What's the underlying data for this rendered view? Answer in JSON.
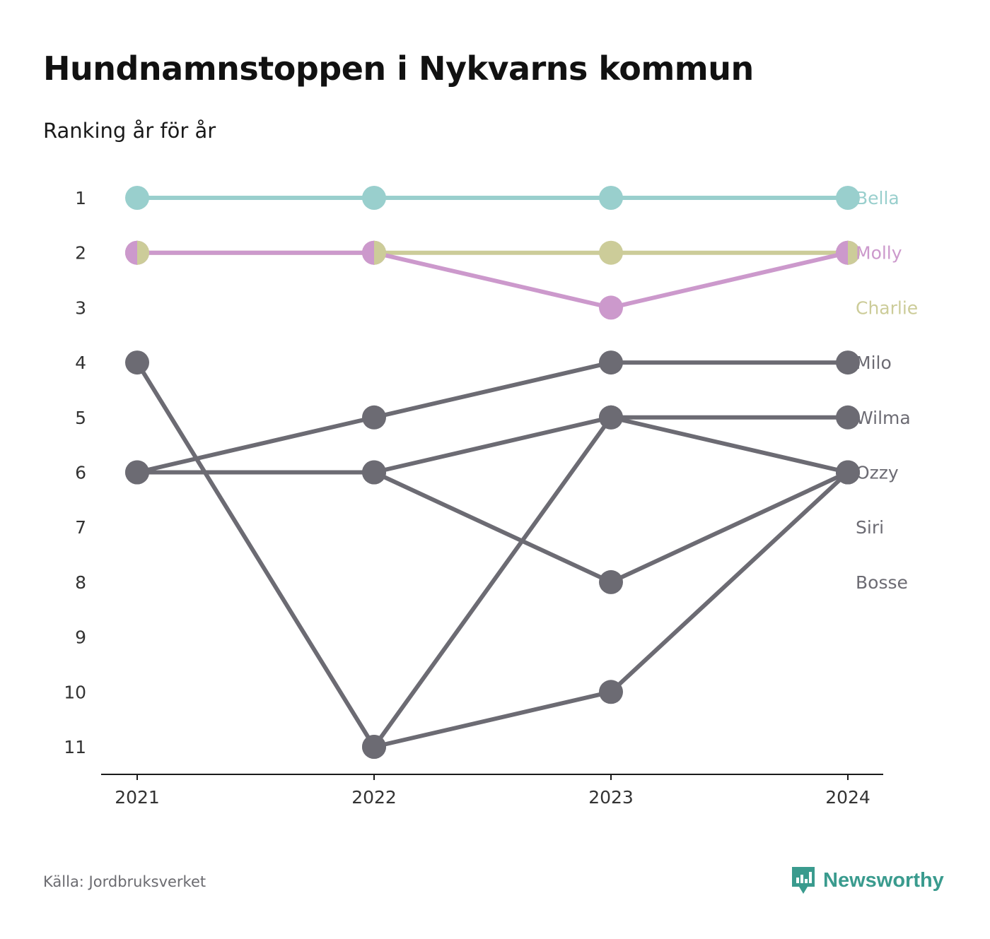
{
  "header": {
    "title": "Hundnamnstoppen i Nykvarns kommun",
    "subtitle": "Ranking år för år"
  },
  "footer": {
    "source": "Källa: Jordbruksverket",
    "brand": "Newsworthy",
    "brand_color": "#3a9b8e"
  },
  "chart_data": {
    "type": "line",
    "title": "Hundnamnstoppen i Nykvarns kommun",
    "subtitle": "Ranking år för år",
    "x": [
      "2021",
      "2022",
      "2023",
      "2024"
    ],
    "y_ticks": [
      1,
      2,
      3,
      4,
      5,
      6,
      7,
      8,
      9,
      10,
      11
    ],
    "y_reversed": true,
    "ylim": [
      1,
      11
    ],
    "grid": false,
    "legend": "direct labels right",
    "series": [
      {
        "name": "Bella",
        "values": [
          1,
          1,
          1,
          1
        ],
        "color": "#99cfcd"
      },
      {
        "name": "Molly",
        "values": [
          2,
          2,
          3,
          2
        ],
        "color": "#cc99cc"
      },
      {
        "name": "Charlie",
        "values": [
          2,
          2,
          2,
          2
        ],
        "color": "#cccc99"
      },
      {
        "name": "Milo",
        "values": [
          6,
          5,
          4,
          4
        ],
        "color": "#6c6b73"
      },
      {
        "name": "Wilma",
        "values": [
          6,
          6,
          5,
          5
        ],
        "color": "#6c6b73"
      },
      {
        "name": "Ozzy",
        "values": [
          4,
          11,
          5,
          6
        ],
        "color": "#6c6b73"
      },
      {
        "name": "Siri",
        "values": [
          null,
          6,
          8,
          6
        ],
        "color": "#6c6b73"
      },
      {
        "name": "Bosse",
        "values": [
          null,
          11,
          10,
          6
        ],
        "color": "#6c6b73"
      }
    ],
    "label_ranks": {
      "Bella": 1,
      "Molly": 2,
      "Charlie": 3,
      "Milo": 4,
      "Wilma": 5,
      "Ozzy": 6,
      "Siri": 7,
      "Bosse": 8
    }
  }
}
